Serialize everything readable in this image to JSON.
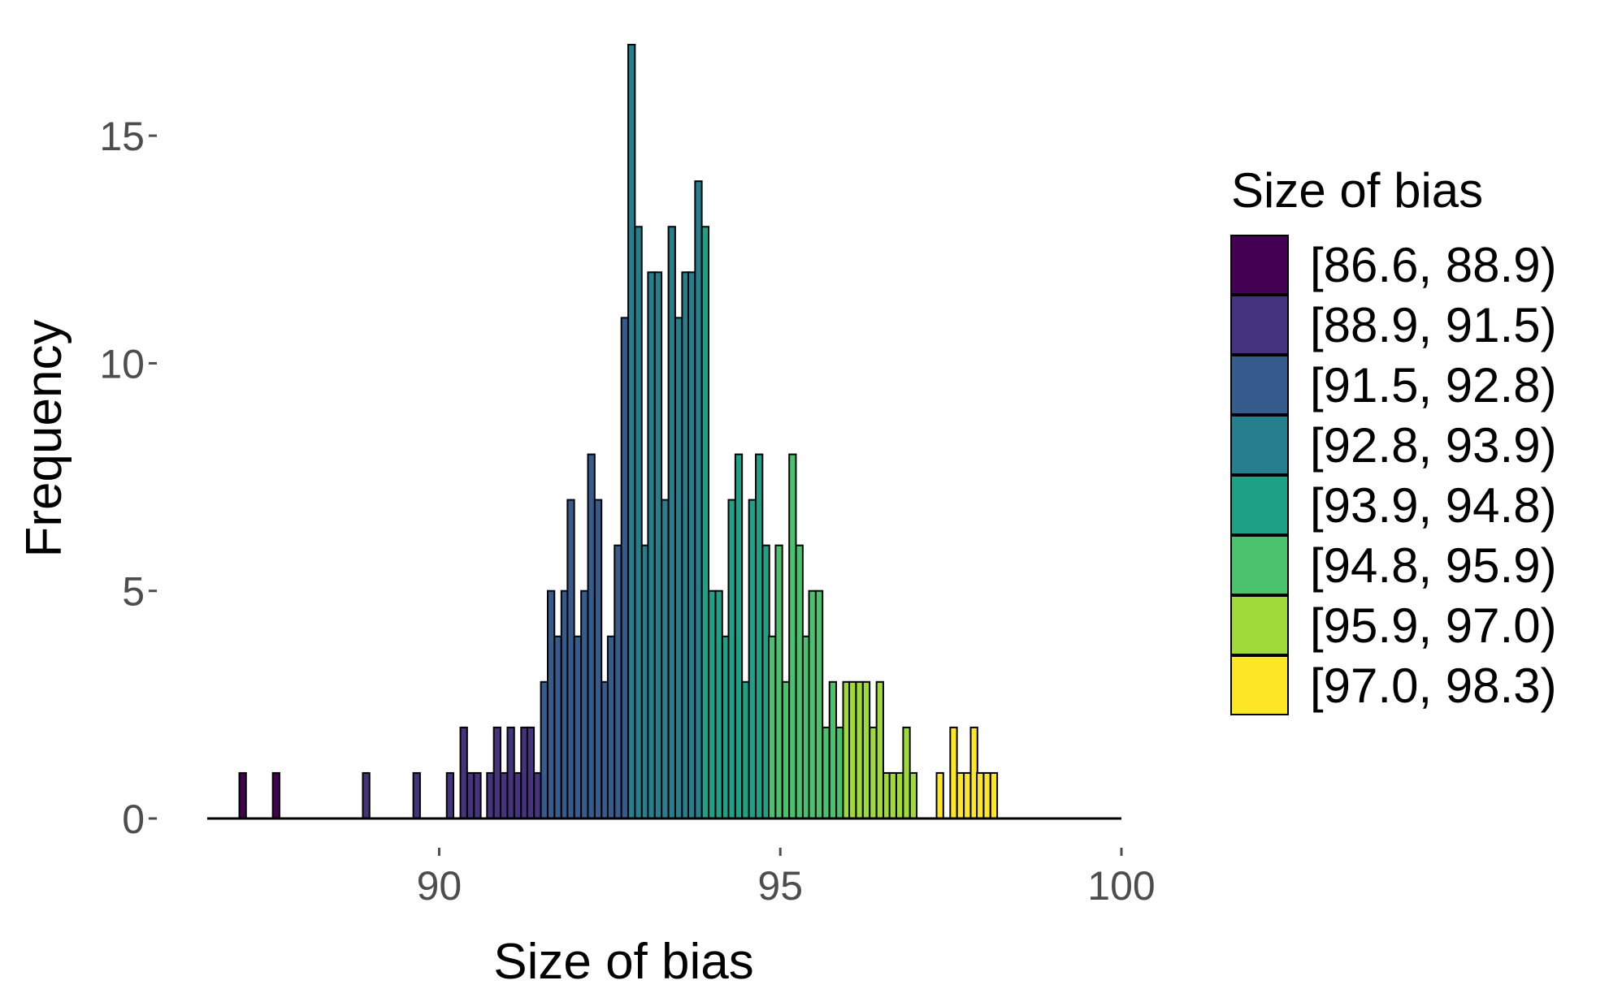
{
  "chart_data": {
    "type": "bar",
    "xlabel": "Size of bias",
    "ylabel": "Frequency",
    "xlim": [
      86.6,
      100
    ],
    "ylim": [
      0,
      17
    ],
    "xticks": [
      90,
      95,
      100
    ],
    "yticks": [
      0,
      5,
      10,
      15
    ],
    "grid": false,
    "bin_width": 0.0985,
    "x": [
      87.12,
      87.61,
      88.93,
      89.67,
      90.16,
      90.36,
      90.46,
      90.56,
      90.75,
      90.85,
      90.95,
      91.05,
      91.15,
      91.25,
      91.34,
      91.44,
      91.54,
      91.64,
      91.74,
      91.84,
      91.93,
      92.03,
      92.13,
      92.23,
      92.33,
      92.43,
      92.52,
      92.62,
      92.72,
      92.82,
      92.92,
      93.02,
      93.11,
      93.21,
      93.31,
      93.41,
      93.51,
      93.61,
      93.7,
      93.8,
      93.9,
      94.0,
      94.1,
      94.2,
      94.29,
      94.39,
      94.49,
      94.59,
      94.69,
      94.79,
      94.88,
      94.98,
      95.08,
      95.18,
      95.28,
      95.38,
      95.47,
      95.57,
      95.67,
      95.77,
      95.87,
      95.97,
      96.06,
      96.16,
      96.26,
      96.36,
      96.46,
      96.56,
      96.65,
      96.75,
      96.85,
      96.95,
      97.34,
      97.54,
      97.64,
      97.74,
      97.84,
      97.93,
      98.03,
      98.13
    ],
    "values": [
      1,
      1,
      1,
      1,
      1,
      2,
      1,
      1,
      1,
      2,
      1,
      2,
      1,
      2,
      2,
      1,
      3,
      5,
      4,
      5,
      7,
      4,
      5,
      8,
      7,
      3,
      4,
      6,
      11,
      17,
      13,
      6,
      12,
      12,
      7,
      13,
      11,
      12,
      12,
      14,
      13,
      5,
      5,
      4,
      7,
      8,
      3,
      7,
      8,
      6,
      4,
      6,
      3,
      8,
      6,
      4,
      5,
      5,
      2,
      3,
      2,
      3,
      3,
      3,
      3,
      2,
      3,
      1,
      1,
      1,
      2,
      1,
      1,
      2,
      1,
      1,
      2,
      1,
      1,
      1
    ],
    "legend": {
      "title": "Size of bias",
      "placement": "right",
      "entries": [
        {
          "label": "[86.6, 88.9)",
          "lo": 86.6,
          "hi": 88.9,
          "color": "#440154"
        },
        {
          "label": "[88.9, 91.5)",
          "lo": 88.9,
          "hi": 91.5,
          "color": "#46337E"
        },
        {
          "label": "[91.5, 92.8)",
          "lo": 91.5,
          "hi": 92.8,
          "color": "#365C8D"
        },
        {
          "label": "[92.8, 93.9)",
          "lo": 92.8,
          "hi": 93.9,
          "color": "#277F8E"
        },
        {
          "label": "[93.9, 94.8)",
          "lo": 93.9,
          "hi": 94.8,
          "color": "#1FA187"
        },
        {
          "label": "[94.8, 95.9)",
          "lo": 94.8,
          "hi": 95.9,
          "color": "#4AC16D"
        },
        {
          "label": "[95.9, 97.0)",
          "lo": 95.9,
          "hi": 97.0,
          "color": "#A0DA39"
        },
        {
          "label": "[97.0, 98.3)",
          "lo": 97.0,
          "hi": 98.3,
          "color": "#FDE725"
        }
      ]
    }
  }
}
